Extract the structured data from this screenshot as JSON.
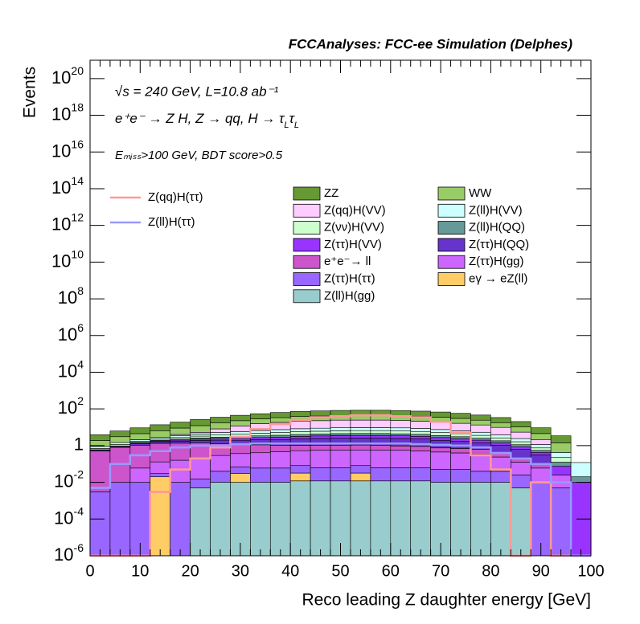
{
  "chart_data": {
    "type": "stacked-histogram",
    "title": "FCCAnalyses: FCC-ee Simulation (Delphes)",
    "annotations": [
      "√s = 240 GeV, L=10.8 ab⁻¹",
      [
        "e⁺e⁻ → Z H, Z → qq, H → τ",
        "L",
        "τ",
        "L"
      ],
      "Eₘᵢₛₛ>100 GeV, BDT score>0.5"
    ],
    "xlabel": "Reco leading Z daughter energy [GeV]",
    "ylabel": "Events",
    "log_y": true,
    "xlim": [
      0,
      100
    ],
    "xticks": [
      0,
      10,
      20,
      30,
      40,
      50,
      60,
      70,
      80,
      90,
      100
    ],
    "ylim": [
      1e-06,
      1e+21
    ],
    "yticks": [
      {
        "value": 1e-06,
        "label": "10",
        "exponent": "-6"
      },
      {
        "value": 0.0001,
        "label": "10",
        "exponent": "-4"
      },
      {
        "value": 0.01,
        "label": "10",
        "exponent": "-2"
      },
      1,
      {
        "value": 100,
        "label": "10",
        "exponent": "2"
      },
      {
        "value": 10000,
        "label": "10",
        "exponent": "4"
      },
      {
        "value": 1000000,
        "label": "10",
        "exponent": "6"
      },
      {
        "value": 100000000,
        "label": "10",
        "exponent": "8"
      },
      {
        "value": 10000000000,
        "label": "10",
        "exponent": "10"
      },
      {
        "value": 1000000000000,
        "label": "10",
        "exponent": "12"
      },
      {
        "value": 100000000000000,
        "label": "10",
        "exponent": "14"
      },
      {
        "value": 10000000000000000,
        "label": "10",
        "exponent": "16"
      },
      {
        "value": 1000000000000000000,
        "label": "10",
        "exponent": "18"
      },
      {
        "value": 100000000000000000000,
        "label": "10",
        "exponent": "20"
      }
    ],
    "bins": [
      0,
      4,
      8,
      12,
      16,
      20,
      24,
      28,
      32,
      36,
      40,
      44,
      48,
      52,
      56,
      60,
      64,
      68,
      72,
      76,
      80,
      84,
      88,
      92,
      96,
      100
    ],
    "series": [
      {
        "name": "Z(ll)H(gg)",
        "color": "#99cccc",
        "values": [
          0,
          0,
          0,
          0,
          0,
          0.005,
          0.01,
          0.01,
          0.01,
          0.01,
          0.012,
          0.012,
          0.012,
          0.012,
          0.012,
          0.012,
          0.012,
          0.01,
          0.01,
          0.01,
          0.01,
          0.005,
          0,
          0,
          0
        ]
      },
      {
        "name": "eγ → eZ(ll)",
        "color": "#ffcc66",
        "values": [
          0,
          0,
          0,
          0.02,
          0,
          0,
          0,
          0.02,
          0,
          0,
          0.02,
          0,
          0,
          0.02,
          0,
          0,
          0,
          0,
          0,
          0,
          0,
          0,
          0,
          0,
          0
        ]
      },
      {
        "name": "Z(ττ)H(ττ)",
        "color": "#9966ff",
        "values": [
          0.003,
          0.01,
          0.01,
          0.01,
          0.01,
          0.01,
          0.03,
          0.04,
          0.05,
          0.05,
          0.05,
          0.05,
          0.05,
          0.05,
          0.05,
          0.05,
          0.05,
          0.04,
          0.04,
          0.03,
          0.03,
          0.02,
          0.01,
          0.005,
          0
        ]
      },
      {
        "name": "Z(ττ)H(gg)",
        "color": "#cc66ff",
        "values": [
          0,
          0,
          0.05,
          0.1,
          0.15,
          0.2,
          0.25,
          0.3,
          0.35,
          0.4,
          0.45,
          0.5,
          0.5,
          0.5,
          0.5,
          0.5,
          0.45,
          0.4,
          0.35,
          0.3,
          0.2,
          0.1,
          0.05,
          0.02,
          0
        ]
      },
      {
        "name": "e⁺e⁻→ ll",
        "color": "#cc55cc",
        "values": [
          0.5,
          0.8,
          1,
          1.2,
          1.2,
          1.2,
          1,
          0.8,
          0.7,
          0.6,
          0.5,
          0.5,
          0.5,
          0.5,
          0.5,
          0.4,
          0.4,
          0.3,
          0.3,
          0.3,
          0.2,
          0.1,
          0.05,
          0,
          0
        ]
      },
      {
        "name": "Z(ττ)H(QQ)",
        "color": "#6633cc",
        "values": [
          0,
          0,
          0.2,
          0.3,
          0.4,
          0.5,
          0.7,
          0.8,
          1,
          1.1,
          1.3,
          1.4,
          1.5,
          1.5,
          1.5,
          1.5,
          1.4,
          1.2,
          1,
          0.8,
          0.6,
          0.4,
          0.2,
          0,
          0
        ]
      },
      {
        "name": "Z(ττ)H(VV)",
        "color": "#9933ff",
        "values": [
          0.05,
          0.08,
          0.12,
          0.18,
          0.25,
          0.35,
          0.45,
          0.55,
          0.65,
          0.75,
          0.85,
          0.92,
          0.97,
          1,
          1,
          0.97,
          0.9,
          0.8,
          0.68,
          0.55,
          0.4,
          0.25,
          0.12,
          0.05,
          0.01
        ]
      },
      {
        "name": "Z(ll)H(QQ)",
        "color": "#669999",
        "values": [
          0.05,
          0.08,
          0.12,
          0.18,
          0.25,
          0.35,
          0.45,
          0.55,
          0.65,
          0.75,
          0.85,
          0.92,
          0.97,
          1,
          1,
          0.97,
          0.9,
          0.8,
          0.68,
          0.55,
          0.4,
          0.25,
          0.12,
          0.05,
          0.01
        ]
      },
      {
        "name": "Z(νν)H(VV)",
        "color": "#ccffcc",
        "values": [
          0.1,
          0.2,
          0.2,
          0.4,
          0.5,
          0.7,
          0.9,
          1.1,
          1.3,
          1.5,
          1.7,
          1.8,
          1.9,
          2,
          2,
          1.9,
          1.8,
          1.6,
          1.4,
          1.1,
          0.8,
          0.5,
          0.2,
          0.1,
          0
        ]
      },
      {
        "name": "Z(ll)H(VV)",
        "color": "#ccffff",
        "values": [
          0.2,
          0.3,
          0.4,
          0.5,
          0.8,
          1,
          1.4,
          1.7,
          2,
          2.3,
          2.6,
          2.8,
          3,
          3,
          3,
          3,
          2.7,
          2.4,
          2,
          1.7,
          1.2,
          0.8,
          0.4,
          0.2,
          0.1
        ]
      },
      {
        "name": "Z(qq)H(VV)",
        "color": "#ffccff",
        "values": [
          0,
          0,
          0,
          0,
          0.5,
          1,
          3,
          6,
          9,
          11,
          13,
          14,
          15,
          15,
          15,
          14,
          13,
          12,
          10,
          8,
          6,
          3,
          1,
          0,
          0
        ]
      },
      {
        "name": "WW",
        "color": "#99cc66",
        "values": [
          1,
          1.6,
          2.4,
          3.6,
          5,
          7,
          9,
          11,
          13,
          15,
          17,
          18,
          19,
          20,
          20,
          19,
          18,
          16,
          14,
          11,
          8,
          5,
          2.4,
          1,
          0
        ]
      },
      {
        "name": "ZZ",
        "color": "#669933",
        "values": [
          2,
          3.2,
          4.8,
          7.2,
          10,
          14,
          18,
          22,
          26,
          30,
          34,
          37,
          39,
          40,
          40,
          39,
          36,
          32,
          27,
          22,
          16,
          10,
          4.8,
          2,
          0
        ]
      }
    ],
    "lines": [
      {
        "name": "Z(qq)H(ττ)",
        "color": "#ff9999",
        "values": [
          0,
          0,
          0,
          0.003,
          0.05,
          0.2,
          0.8,
          3,
          8,
          15,
          25,
          35,
          40,
          45,
          45,
          40,
          35,
          20,
          5,
          0.3,
          0.05,
          0,
          0.01,
          0,
          0
        ]
      },
      {
        "name": "Z(ll)H(ττ)",
        "color": "#9999ff",
        "values": [
          0.005,
          0.1,
          0.3,
          0.5,
          0.8,
          1,
          1,
          1.2,
          1.3,
          1.3,
          1.3,
          1.3,
          1.3,
          1.3,
          1.3,
          1.3,
          1.2,
          1.1,
          1,
          0.8,
          0.4,
          0.2,
          0.1,
          0.01,
          0
        ]
      }
    ]
  }
}
